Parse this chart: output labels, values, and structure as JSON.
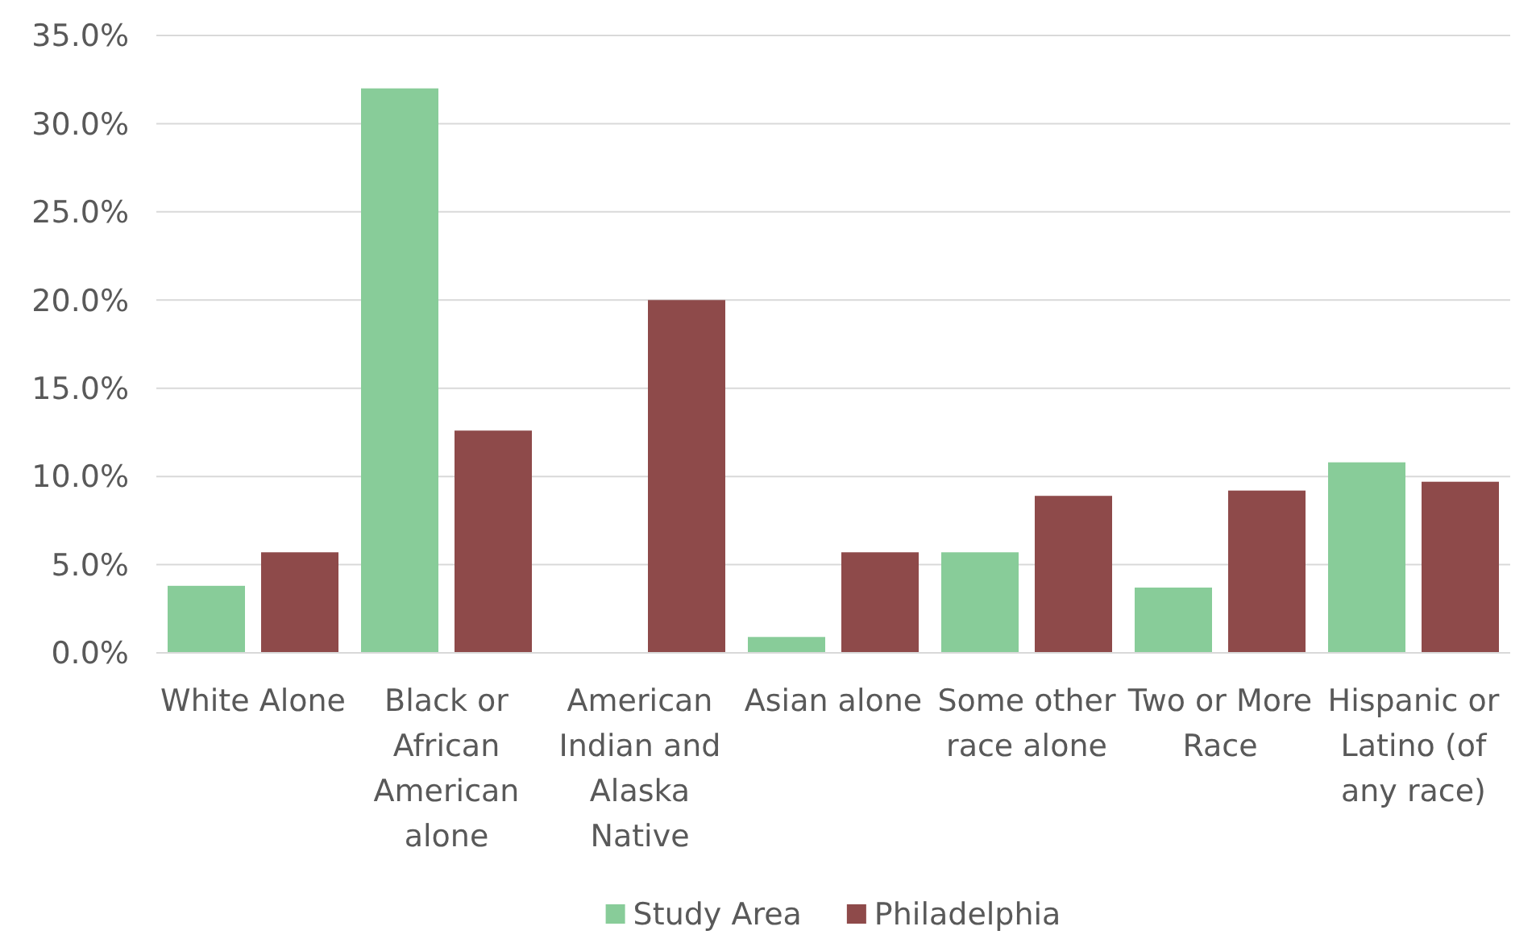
{
  "chart_data": {
    "type": "bar",
    "categories": [
      "White Alone",
      "Black or African American alone",
      "American Indian and Alaska Native",
      "Asian alone",
      "Some other race alone",
      "Two or More Race",
      "Hispanic or Latino (of any race)"
    ],
    "series": [
      {
        "name": "Study Area",
        "color": "#88cc99",
        "values": [
          3.8,
          32.0,
          0,
          0.9,
          5.7,
          3.7,
          10.8
        ]
      },
      {
        "name": "Philadelphia",
        "color": "#8e4a4a",
        "values": [
          5.7,
          12.6,
          20.0,
          5.7,
          8.9,
          9.2,
          9.7
        ]
      }
    ],
    "ylim": [
      0,
      35
    ],
    "yticks": [
      {
        "value": 0,
        "label": "0.0%"
      },
      {
        "value": 5,
        "label": "5.0%"
      },
      {
        "value": 10,
        "label": "10.0%"
      },
      {
        "value": 15,
        "label": "15.0%"
      },
      {
        "value": 20,
        "label": "20.0%"
      },
      {
        "value": 25,
        "label": "25.0%"
      },
      {
        "value": 30,
        "label": "30.0%"
      },
      {
        "value": 35,
        "label": "35.0%"
      }
    ],
    "grid": "y",
    "legend": "bottom"
  }
}
